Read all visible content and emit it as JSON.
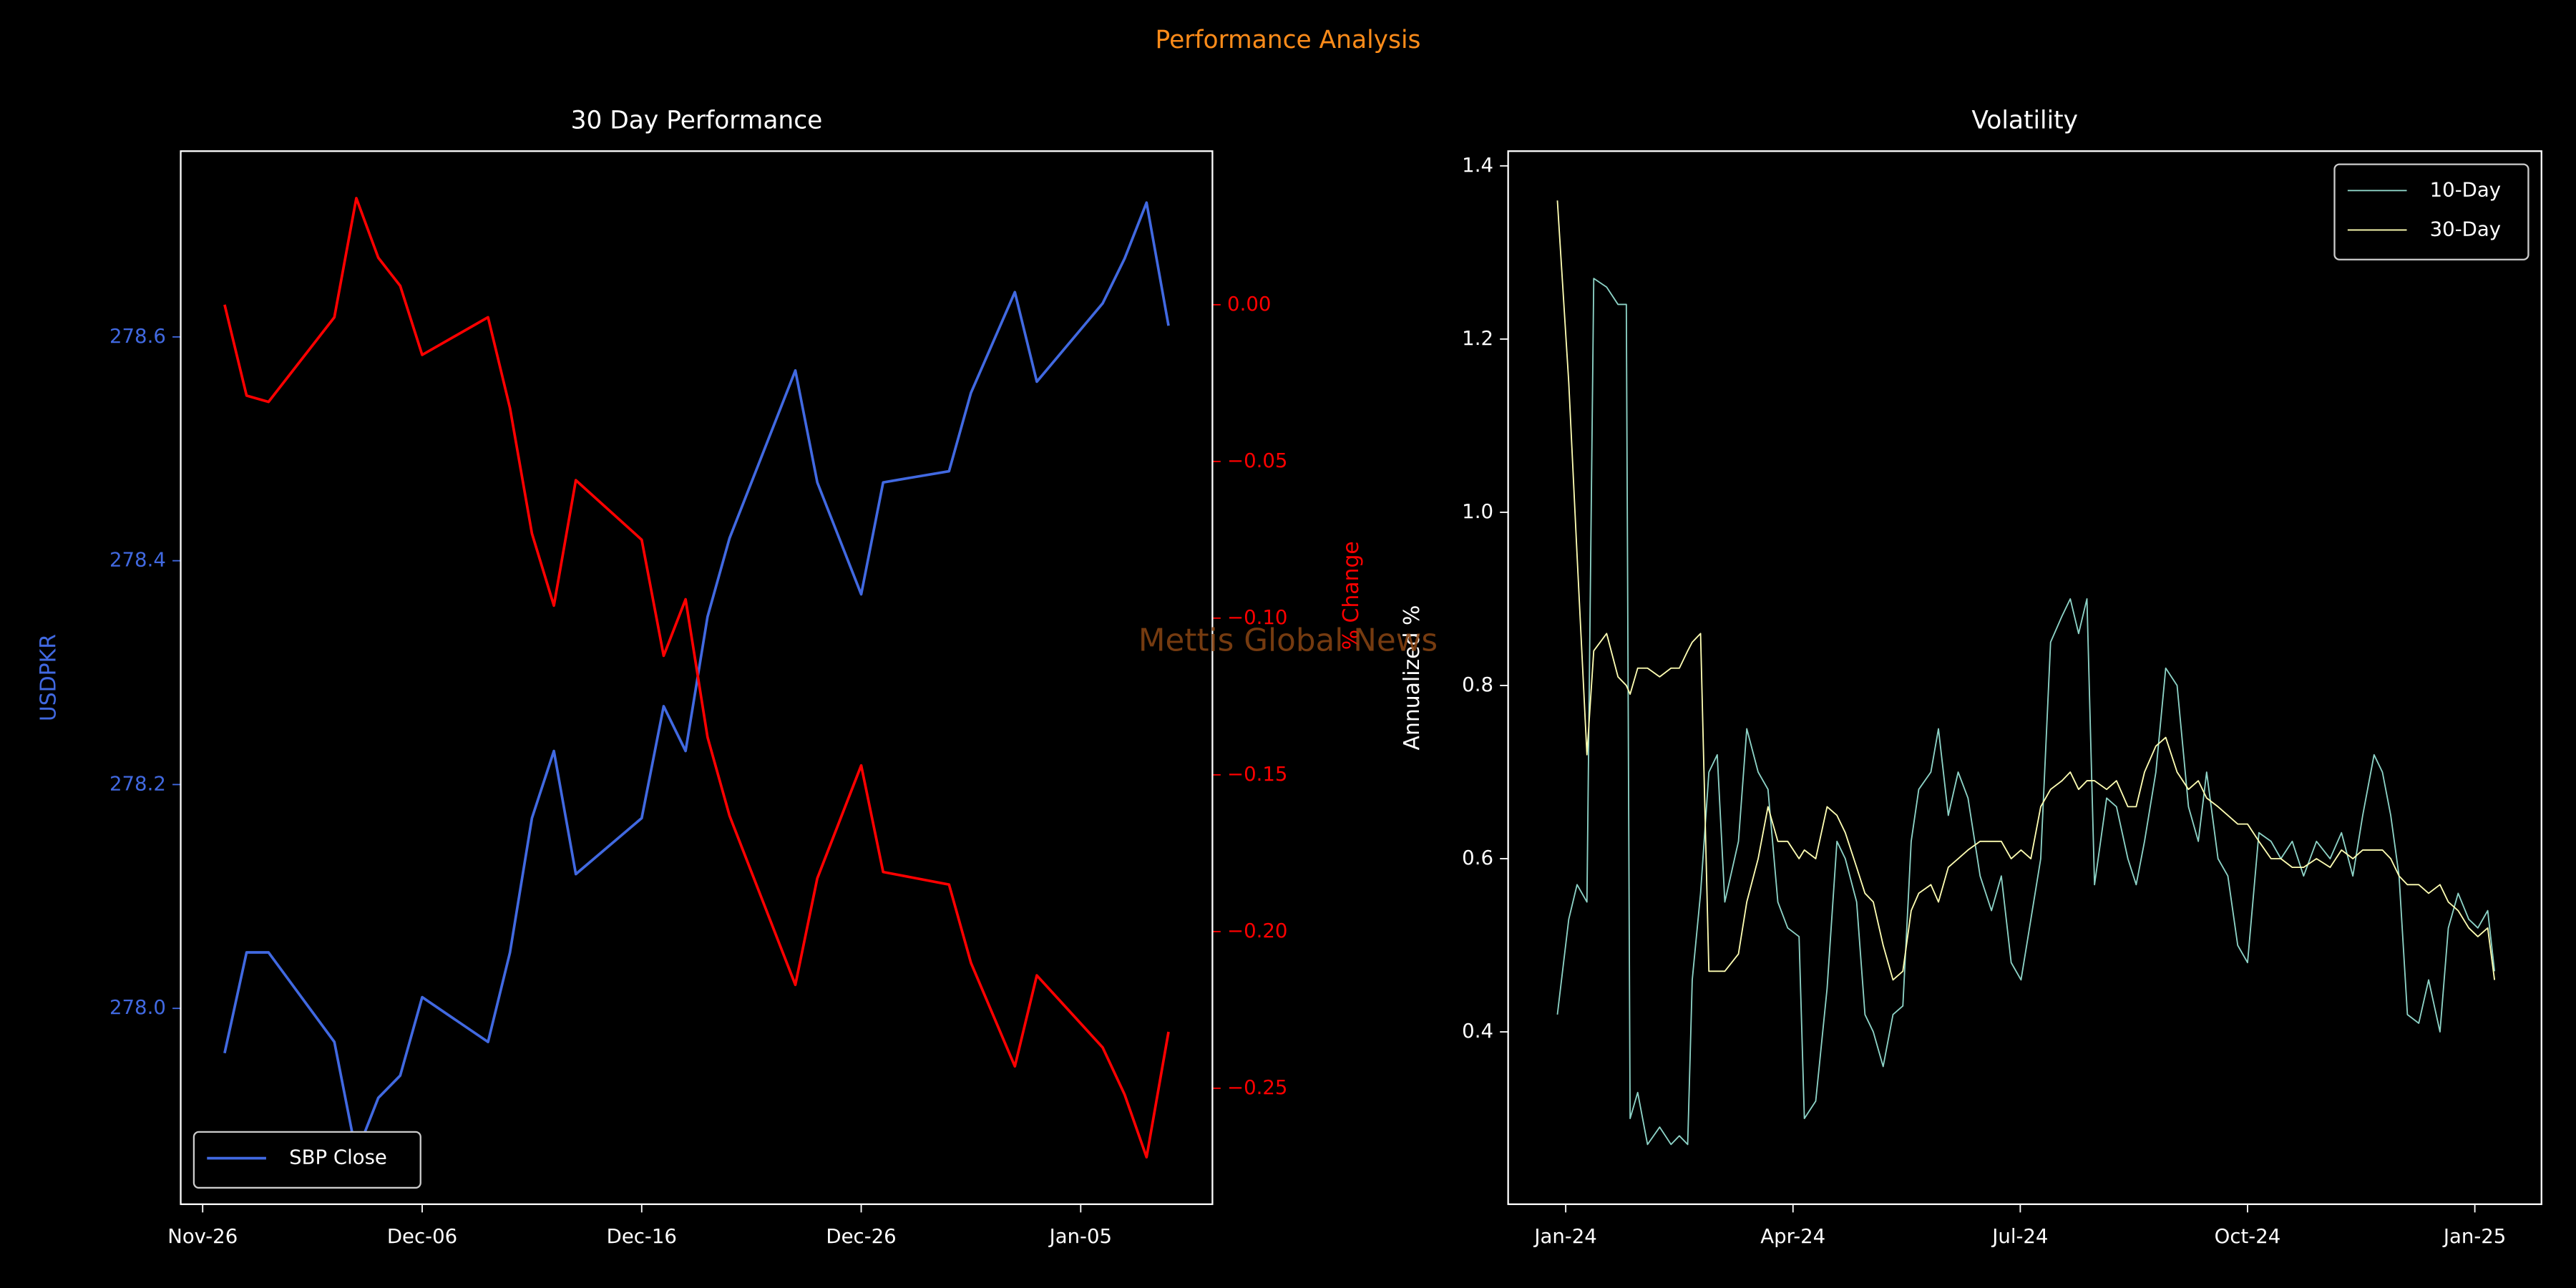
{
  "title": "Performance Analysis",
  "watermark": "Mettis Global News",
  "chart_data": [
    {
      "type": "line",
      "title": "30 Day Performance",
      "x": [
        "Nov-27",
        "Nov-28",
        "Nov-29",
        "Dec-02",
        "Dec-03",
        "Dec-04",
        "Dec-05",
        "Dec-06",
        "Dec-09",
        "Dec-10",
        "Dec-11",
        "Dec-12",
        "Dec-13",
        "Dec-16",
        "Dec-17",
        "Dec-18",
        "Dec-19",
        "Dec-20",
        "Dec-23",
        "Dec-24",
        "Dec-26",
        "Dec-27",
        "Dec-30",
        "Dec-31",
        "Jan-02",
        "Jan-03",
        "Jan-06",
        "Jan-07",
        "Jan-08",
        "Jan-09"
      ],
      "xlim": [
        "Nov-25",
        "Jan-11"
      ],
      "xticks": [
        "Nov-26",
        "Dec-06",
        "Dec-16",
        "Dec-26",
        "Jan-05"
      ],
      "ylabel": "USDPKR",
      "y2label": "% Change",
      "ylim": [
        277.825,
        278.766
      ],
      "yticks": [
        {
          "value": 278,
          "label": "278.0"
        },
        278.2,
        278.4,
        278.6
      ],
      "y2lim": [
        -0.287,
        0.049
      ],
      "y2ticks": [
        {
          "value": -0.25,
          "label": "−0.25"
        },
        {
          "value": -0.2,
          "label": "−0.20"
        },
        {
          "value": -0.15,
          "label": "−0.15"
        },
        {
          "value": -0.1,
          "label": "−0.10"
        },
        {
          "value": -0.05,
          "label": "−0.05"
        },
        {
          "value": 0,
          "label": "0.00"
        }
      ],
      "legend": "lower left",
      "series": [
        {
          "name": "SBP Close",
          "color": "#4169e1",
          "values": [
            277.96,
            278.05,
            278.05,
            277.97,
            277.87,
            277.92,
            277.94,
            278.01,
            277.97,
            278.05,
            278.17,
            278.23,
            278.12,
            278.17,
            278.27,
            278.23,
            278.35,
            278.42,
            278.57,
            278.47,
            278.37,
            278.47,
            278.48,
            278.55,
            278.64,
            278.56,
            278.63,
            278.67,
            278.72,
            278.61
          ]
        },
        {
          "color": "#ff0000",
          "axis": "y2",
          "values": [
            0,
            -0.029,
            -0.031,
            -0.004,
            0.034,
            0.015,
            0.006,
            -0.016,
            -0.004,
            -0.033,
            -0.073,
            -0.096,
            -0.056,
            -0.075,
            -0.112,
            -0.094,
            -0.138,
            -0.163,
            -0.217,
            -0.183,
            -0.147,
            -0.181,
            -0.185,
            -0.21,
            -0.243,
            -0.214,
            -0.237,
            -0.252,
            -0.272,
            -0.232
          ]
        }
      ]
    },
    {
      "type": "line",
      "title": "Volatility",
      "x": [
        -0.11,
        0.04,
        0.15,
        0.28,
        0.37,
        0.54,
        0.69,
        0.8,
        0.85,
        0.95,
        1.08,
        1.24,
        1.39,
        1.5,
        1.61,
        1.67,
        1.78,
        1.89,
        2.0,
        2.1,
        2.28,
        2.39,
        2.54,
        2.67,
        2.8,
        2.93,
        3.08,
        3.15,
        3.3,
        3.45,
        3.58,
        3.69,
        3.84,
        3.95,
        4.06,
        4.19,
        4.32,
        4.45,
        4.56,
        4.66,
        4.82,
        4.92,
        5.05,
        5.18,
        5.31,
        5.47,
        5.62,
        5.75,
        5.88,
        6.01,
        6.14,
        6.27,
        6.4,
        6.55,
        6.66,
        6.77,
        6.88,
        6.98,
        7.14,
        7.27,
        7.42,
        7.53,
        7.64,
        7.79,
        7.92,
        8.07,
        8.22,
        8.35,
        8.46,
        8.61,
        8.74,
        8.87,
        9.0,
        9.15,
        9.31,
        9.44,
        9.59,
        9.74,
        9.91,
        10.09,
        10.24,
        10.39,
        10.52,
        10.67,
        10.78,
        10.89,
        11.0,
        11.11,
        11.26,
        11.39,
        11.54,
        11.65,
        11.78,
        11.92,
        12.04,
        12.17,
        12.26
      ],
      "xlim": [
        -0.76,
        12.88
      ],
      "xticks": [
        {
          "value": 0,
          "label": "Jan-24"
        },
        {
          "value": 3,
          "label": "Apr-24"
        },
        {
          "value": 6,
          "label": "Jul-24"
        },
        {
          "value": 9,
          "label": "Oct-24"
        },
        {
          "value": 12,
          "label": "Jan-25"
        }
      ],
      "ylabel": "Annualized %",
      "ylim": [
        0.201,
        1.417
      ],
      "yticks": [
        0.4,
        0.6,
        0.8,
        {
          "value": 1,
          "label": "1.0"
        },
        1.2,
        1.4
      ],
      "legend": "upper right",
      "series": [
        {
          "name": "10-Day",
          "color": "#8dd3c7",
          "values": [
            0.42,
            0.53,
            0.57,
            0.55,
            1.27,
            1.26,
            1.24,
            1.24,
            0.3,
            0.33,
            0.27,
            0.29,
            0.27,
            0.28,
            0.27,
            0.46,
            0.56,
            0.7,
            0.72,
            0.55,
            0.62,
            0.75,
            0.7,
            0.68,
            0.55,
            0.52,
            0.51,
            0.3,
            0.32,
            0.45,
            0.62,
            0.6,
            0.55,
            0.42,
            0.4,
            0.36,
            0.42,
            0.43,
            0.62,
            0.68,
            0.7,
            0.75,
            0.65,
            0.7,
            0.67,
            0.58,
            0.54,
            0.58,
            0.48,
            0.46,
            0.53,
            0.6,
            0.85,
            0.88,
            0.9,
            0.86,
            0.9,
            0.57,
            0.67,
            0.66,
            0.6,
            0.57,
            0.62,
            0.7,
            0.82,
            0.8,
            0.66,
            0.62,
            0.7,
            0.6,
            0.58,
            0.5,
            0.48,
            0.63,
            0.62,
            0.6,
            0.62,
            0.58,
            0.62,
            0.6,
            0.63,
            0.58,
            0.65,
            0.72,
            0.7,
            0.65,
            0.58,
            0.42,
            0.41,
            0.46,
            0.4,
            0.52,
            0.56,
            0.53,
            0.52,
            0.54,
            0.47
          ]
        },
        {
          "name": "30-Day",
          "color": "#ffffb3",
          "values": [
            1.36,
            1.15,
            0.95,
            0.72,
            0.84,
            0.86,
            0.81,
            0.8,
            0.79,
            0.82,
            0.82,
            0.81,
            0.82,
            0.82,
            0.84,
            0.85,
            0.86,
            0.47,
            0.47,
            0.47,
            0.49,
            0.55,
            0.6,
            0.66,
            0.62,
            0.62,
            0.6,
            0.61,
            0.6,
            0.66,
            0.65,
            0.63,
            0.59,
            0.56,
            0.55,
            0.5,
            0.46,
            0.47,
            0.54,
            0.56,
            0.57,
            0.55,
            0.59,
            0.6,
            0.61,
            0.62,
            0.62,
            0.62,
            0.6,
            0.61,
            0.6,
            0.66,
            0.68,
            0.69,
            0.7,
            0.68,
            0.69,
            0.69,
            0.68,
            0.69,
            0.66,
            0.66,
            0.7,
            0.73,
            0.74,
            0.7,
            0.68,
            0.69,
            0.67,
            0.66,
            0.65,
            0.64,
            0.64,
            0.62,
            0.6,
            0.6,
            0.59,
            0.59,
            0.6,
            0.59,
            0.61,
            0.6,
            0.61,
            0.61,
            0.61,
            0.6,
            0.58,
            0.57,
            0.57,
            0.56,
            0.57,
            0.55,
            0.54,
            0.52,
            0.51,
            0.52,
            0.46
          ]
        }
      ]
    }
  ]
}
